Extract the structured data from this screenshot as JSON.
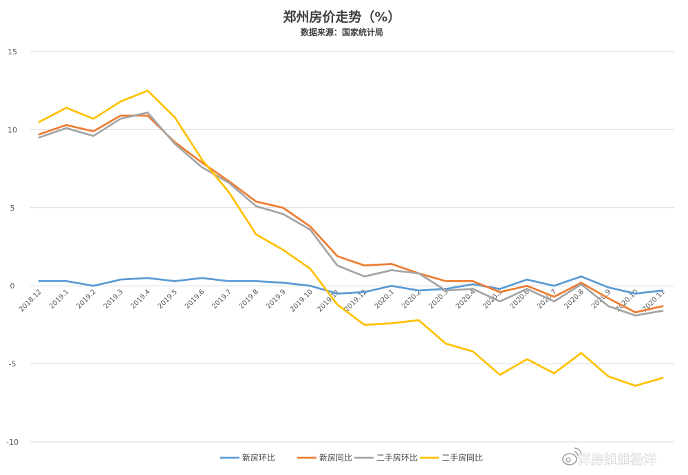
{
  "chart_data": {
    "type": "line",
    "title": "郑州房价走势（%）",
    "subtitle": "数据来源：国家统计局",
    "xlabel": "",
    "ylabel": "",
    "ylim": [
      -10,
      15
    ],
    "yticks": [
      15,
      10,
      5,
      0,
      -5,
      -10
    ],
    "grid": true,
    "legend_position": "bottom",
    "categories": [
      "2018.12",
      "2019.1",
      "2019.2",
      "2019.3",
      "2019.4",
      "2019.5",
      "2019.6",
      "2019.7",
      "2019.8",
      "2019.9",
      "2019.10",
      "2019.11",
      "2019.12",
      "2020.1",
      "2020.2",
      "2020.3",
      "2020.4",
      "2020.5",
      "2020.6",
      "2020.7",
      "2020.8",
      "2020.9",
      "2020.10",
      "2020.11"
    ],
    "series": [
      {
        "name": "新房环比",
        "color": "#5b9bd5",
        "values": [
          0.3,
          0.3,
          0.0,
          0.4,
          0.5,
          0.3,
          0.5,
          0.3,
          0.3,
          0.2,
          0.0,
          -0.5,
          -0.4,
          0.0,
          -0.3,
          -0.2,
          0.1,
          -0.2,
          0.4,
          0.0,
          0.6,
          -0.1,
          -0.5,
          -0.3
        ]
      },
      {
        "name": "新房同比",
        "color": "#ed7d31",
        "values": [
          9.7,
          10.3,
          9.9,
          10.9,
          10.9,
          9.2,
          7.9,
          6.7,
          5.4,
          5.0,
          3.8,
          1.9,
          1.3,
          1.4,
          0.8,
          0.3,
          0.3,
          -0.4,
          0.0,
          -0.7,
          0.2,
          -0.8,
          -1.7,
          -1.3
        ]
      },
      {
        "name": "二手房环比",
        "color": "#a5a5a5",
        "values": [
          9.5,
          10.1,
          9.6,
          10.7,
          11.1,
          9.1,
          7.6,
          6.6,
          5.1,
          4.6,
          3.6,
          1.3,
          0.6,
          1.0,
          0.8,
          -0.3,
          -0.2,
          -1.0,
          -0.2,
          -1.0,
          0.1,
          -1.3,
          -1.9,
          -1.6
        ]
      },
      {
        "name": "二手房同比",
        "color": "#ffc000",
        "values": [
          10.5,
          11.4,
          10.7,
          11.8,
          12.5,
          10.8,
          8.1,
          6.0,
          3.3,
          2.3,
          1.1,
          -1.2,
          -2.5,
          -2.4,
          -2.2,
          -3.7,
          -4.2,
          -5.7,
          -4.7,
          -5.6,
          -4.3,
          -5.8,
          -6.4,
          -5.9
        ]
      }
    ]
  },
  "watermark": {
    "text": "洋房姐姐杨洋"
  }
}
